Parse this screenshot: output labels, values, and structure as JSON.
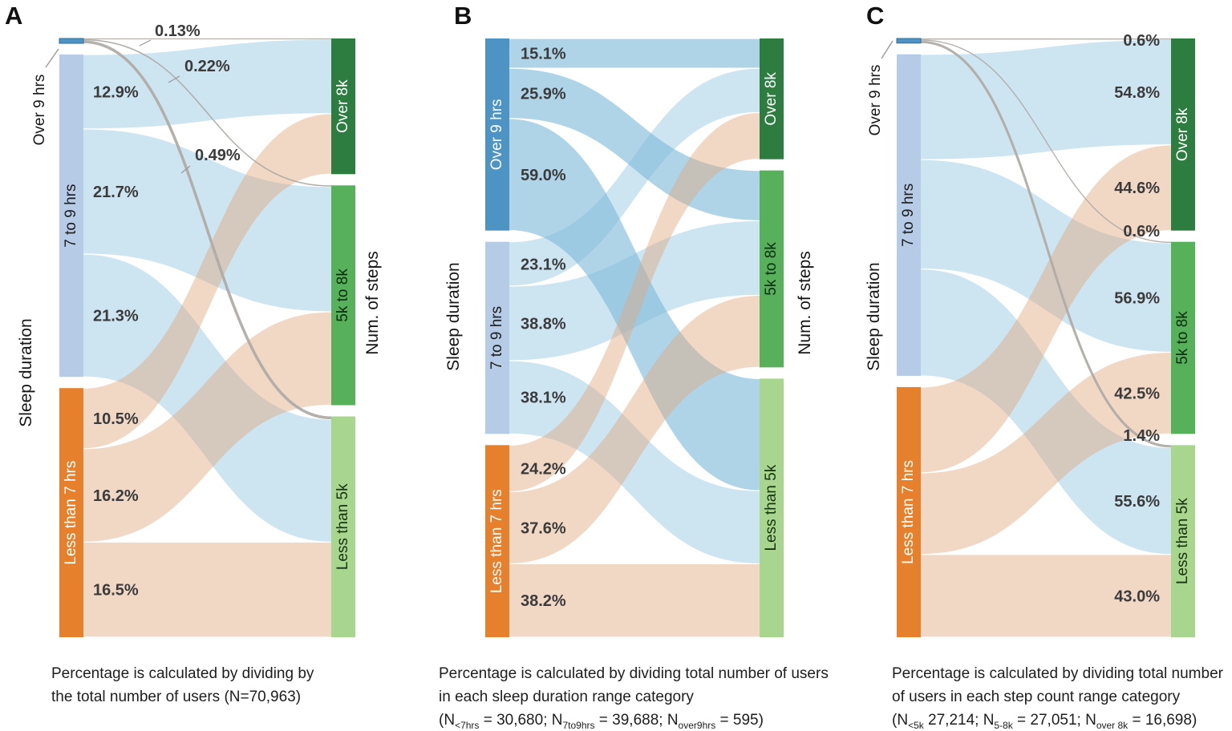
{
  "figure": {
    "panel_letters": [
      "A",
      "B",
      "C"
    ]
  },
  "style": {
    "background": "#ffffff",
    "source_nodes": [
      {
        "id": "over9",
        "label": "Over 9 hrs",
        "color": "#4d93c4",
        "text_color": "#ffffff",
        "border": "#2f6d99"
      },
      {
        "id": "7to9",
        "label": "7 to 9 hrs",
        "color": "#b6cbe6",
        "text_color": "#1c1c1c",
        "border": "none"
      },
      {
        "id": "less7",
        "label": "Less than 7 hrs",
        "color": "#e6802c",
        "text_color": "#ffffff",
        "border": "none"
      }
    ],
    "target_nodes": [
      {
        "id": "over8k",
        "label": "Over 8k",
        "color": "#2e7d40",
        "text_color": "#ffffff"
      },
      {
        "id": "5to8k",
        "label": "5k to 8k",
        "color": "#57b05a",
        "text_color": "#0f2d12"
      },
      {
        "id": "less5k",
        "label": "Less than 5k",
        "color": "#a9d68e",
        "text_color": "#173312"
      }
    ],
    "flow_colors": {
      "over9_fill": "rgba(126,186,218,0.62)",
      "7to9_fill": "rgba(164,206,229,0.55)",
      "less7_fill": "rgba(223,169,126,0.45)",
      "tiny_stroke": "#b0aca6",
      "leader_stroke": "#9a9a9a"
    },
    "label_color": "#3b3b3b",
    "caption_color": "#1d1d1d"
  },
  "chart_data": {
    "type": "sankey",
    "title": "Transitions between sleep duration categories and daily step count categories",
    "source_axis": "Sleep duration",
    "target_axis": "Num. of steps",
    "source_categories": [
      "Over 9 hrs",
      "7 to 9 hrs",
      "Less than 7 hrs"
    ],
    "target_categories": [
      "Over 8k",
      "5k to 8k",
      "Less than 5k"
    ],
    "panels": [
      {
        "panel": "A",
        "normalization": "total",
        "percent_basis": "percentage of all users (N=70,963)",
        "show_right_axis_title": true,
        "links": [
          {
            "source": "Over 9 hrs",
            "target": "Over 8k",
            "pct": 0.13,
            "label": "0.13%"
          },
          {
            "source": "Over 9 hrs",
            "target": "5k to 8k",
            "pct": 0.22,
            "label": "0.22%"
          },
          {
            "source": "Over 9 hrs",
            "target": "Less than 5k",
            "pct": 0.49,
            "label": "0.49%"
          },
          {
            "source": "7 to 9 hrs",
            "target": "Over 8k",
            "pct": 12.9,
            "label": "12.9%"
          },
          {
            "source": "7 to 9 hrs",
            "target": "5k to 8k",
            "pct": 21.7,
            "label": "21.7%"
          },
          {
            "source": "7 to 9 hrs",
            "target": "Less than 5k",
            "pct": 21.3,
            "label": "21.3%"
          },
          {
            "source": "Less than 7 hrs",
            "target": "Over 8k",
            "pct": 10.5,
            "label": "10.5%"
          },
          {
            "source": "Less than 7 hrs",
            "target": "5k to 8k",
            "pct": 16.2,
            "label": "16.2%"
          },
          {
            "source": "Less than 7 hrs",
            "target": "Less than 5k",
            "pct": 16.5,
            "label": "16.5%"
          }
        ],
        "caption_lines": [
          [
            {
              "t": "Percentage is calculated by dividing by"
            }
          ],
          [
            {
              "t": "the total number of users (N=70,963)"
            }
          ]
        ]
      },
      {
        "panel": "B",
        "normalization": "source",
        "percent_basis": "percentage of users in each sleep duration range category",
        "show_right_axis_title": true,
        "links": [
          {
            "source": "Over 9 hrs",
            "target": "Over 8k",
            "pct": 15.1,
            "label": "15.1%"
          },
          {
            "source": "Over 9 hrs",
            "target": "5k to 8k",
            "pct": 25.9,
            "label": "25.9%"
          },
          {
            "source": "Over 9 hrs",
            "target": "Less than 5k",
            "pct": 59.0,
            "label": "59.0%"
          },
          {
            "source": "7 to 9 hrs",
            "target": "Over 8k",
            "pct": 23.1,
            "label": "23.1%"
          },
          {
            "source": "7 to 9 hrs",
            "target": "5k to 8k",
            "pct": 38.8,
            "label": "38.8%"
          },
          {
            "source": "7 to 9 hrs",
            "target": "Less than 5k",
            "pct": 38.1,
            "label": "38.1%"
          },
          {
            "source": "Less than 7 hrs",
            "target": "Over 8k",
            "pct": 24.2,
            "label": "24.2%"
          },
          {
            "source": "Less than 7 hrs",
            "target": "5k to 8k",
            "pct": 37.6,
            "label": "37.6%"
          },
          {
            "source": "Less than 7 hrs",
            "target": "Less than 5k",
            "pct": 38.2,
            "label": "38.2%"
          }
        ],
        "caption_lines": [
          [
            {
              "t": "Percentage is calculated by dividing total number of users"
            }
          ],
          [
            {
              "t": " in each sleep duration range category"
            }
          ],
          [
            {
              "t": "(N"
            },
            {
              "s": "<7hrs"
            },
            {
              "t": " = 30,680; N"
            },
            {
              "s": "7to9hrs"
            },
            {
              "t": " = 39,688; N"
            },
            {
              "s": "over9hrs"
            },
            {
              "t": " = 595)"
            }
          ]
        ]
      },
      {
        "panel": "C",
        "normalization": "target",
        "percent_basis": "percentage of users in each step count range category",
        "show_right_axis_title": false,
        "links": [
          {
            "source": "Over 9 hrs",
            "target": "Over 8k",
            "pct": 0.6,
            "label": "0.6%"
          },
          {
            "source": "Over 9 hrs",
            "target": "5k to 8k",
            "pct": 0.6,
            "label": "0.6%"
          },
          {
            "source": "Over 9 hrs",
            "target": "Less than 5k",
            "pct": 1.4,
            "label": "1.4%"
          },
          {
            "source": "7 to 9 hrs",
            "target": "Over 8k",
            "pct": 54.8,
            "label": "54.8%"
          },
          {
            "source": "7 to 9 hrs",
            "target": "5k to 8k",
            "pct": 56.9,
            "label": "56.9%"
          },
          {
            "source": "7 to 9 hrs",
            "target": "Less than 5k",
            "pct": 55.6,
            "label": "55.6%"
          },
          {
            "source": "Less than 7 hrs",
            "target": "Over 8k",
            "pct": 44.6,
            "label": "44.6%"
          },
          {
            "source": "Less than 7 hrs",
            "target": "5k to 8k",
            "pct": 42.5,
            "label": "42.5%"
          },
          {
            "source": "Less than 7 hrs",
            "target": "Less than 5k",
            "pct": 43.0,
            "label": "43.0%"
          }
        ],
        "caption_lines": [
          [
            {
              "t": "Percentage is calculated by dividing total number"
            }
          ],
          [
            {
              "t": "of users in each step count range category"
            }
          ],
          [
            {
              "t": "(N"
            },
            {
              "s": "<5k"
            },
            {
              "t": " 27,214; N"
            },
            {
              "s": "5-8k"
            },
            {
              "t": " = 27,051; N"
            },
            {
              "s": "over 8k"
            },
            {
              "t": " = 16,698)"
            }
          ]
        ]
      }
    ]
  }
}
